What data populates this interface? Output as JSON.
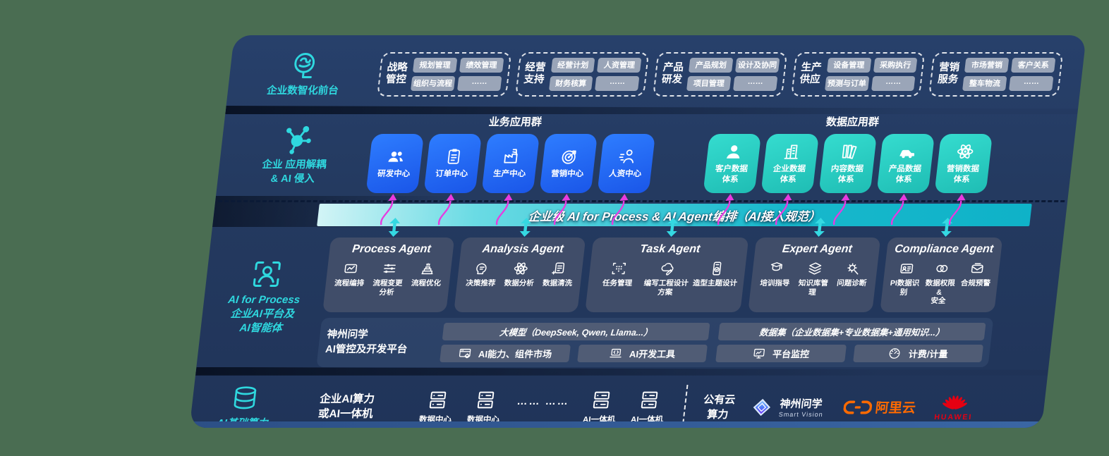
{
  "colors": {
    "background": "#4a6d52",
    "panel_navy": "#243a60",
    "accent_teal": "#2fd8df",
    "business_blue": "#2468f2",
    "data_teal": "#2cd3c9",
    "bar_teal": "#18b8cc",
    "arrow_magenta": "#e83ae0",
    "pill_gray": "#9aa5b8",
    "agent_slate": "#404d69",
    "aliyun_orange": "#ff6a00",
    "huawei_red": "#e60012"
  },
  "front_office": {
    "label": "企业数智化前台",
    "groups": [
      {
        "name": "战略\n管控",
        "items": [
          "规划管理",
          "绩效管理",
          "组织与流程",
          "……"
        ]
      },
      {
        "name": "经营\n支持",
        "items": [
          "经营计划",
          "人资管理",
          "财务核算",
          "……"
        ]
      },
      {
        "name": "产品\n研发",
        "items": [
          "产品规划",
          "设计及协同",
          "项目管理",
          "……"
        ]
      },
      {
        "name": "生产\n供应",
        "items": [
          "设备管理",
          "采购执行",
          "预测与订单",
          "……"
        ]
      },
      {
        "name": "营销\n服务",
        "items": [
          "市场营销",
          "客户关系",
          "整车物流",
          "……"
        ]
      }
    ]
  },
  "decouple": {
    "label": "企业 应用解耦\n& AI 侵入",
    "business": {
      "title": "业务应用群",
      "apps": [
        {
          "label": "研发中心",
          "icon": "team-icon"
        },
        {
          "label": "订单中心",
          "icon": "clipboard-icon"
        },
        {
          "label": "生产中心",
          "icon": "factory-icon"
        },
        {
          "label": "营销中心",
          "icon": "target-icon"
        },
        {
          "label": "人资中心",
          "icon": "hr-icon"
        }
      ]
    },
    "data": {
      "title": "数据应用群",
      "apps": [
        {
          "label": "客户数据\n体系",
          "icon": "person-icon"
        },
        {
          "label": "企业数据\n体系",
          "icon": "building-icon"
        },
        {
          "label": "内容数据\n体系",
          "icon": "books-icon"
        },
        {
          "label": "产品数据\n体系",
          "icon": "car-icon"
        },
        {
          "label": "营销数据\n体系",
          "icon": "atom-icon"
        }
      ]
    }
  },
  "bar": {
    "label": "企业级 AI for Process & AI Agent编排（AI接入规范）"
  },
  "agents_layer": {
    "label": "AI for Process\n企业AI平台及\nAI智能体",
    "agents": [
      {
        "title": "Process Agent",
        "caps": [
          {
            "label": "流程编排",
            "icon": "flow-icon"
          },
          {
            "label": "流程变更分析",
            "icon": "sliders-icon"
          },
          {
            "label": "流程优化",
            "icon": "cake-icon"
          }
        ]
      },
      {
        "title": "Analysis Agent",
        "caps": [
          {
            "label": "决策推荐",
            "icon": "decision-icon"
          },
          {
            "label": "数据分析",
            "icon": "atom-icon"
          },
          {
            "label": "数据清洗",
            "icon": "clean-icon"
          }
        ]
      },
      {
        "title": "Task Agent",
        "caps": [
          {
            "label": "任务管理",
            "icon": "taskgrid-icon"
          },
          {
            "label": "编写工程设计方案",
            "icon": "cloudpen-icon"
          },
          {
            "label": "造型主题设计",
            "icon": "theme-icon"
          }
        ]
      },
      {
        "title": "Expert Agent",
        "caps": [
          {
            "label": "培训指导",
            "icon": "training-icon"
          },
          {
            "label": "知识库管理",
            "icon": "layers-icon"
          },
          {
            "label": "问题诊断",
            "icon": "diagnose-icon"
          }
        ]
      },
      {
        "title": "Compliance Agent",
        "caps": [
          {
            "label": "PI数据识别",
            "icon": "idcard-icon"
          },
          {
            "label": "数据权限 &\n安全",
            "icon": "rings-icon"
          },
          {
            "label": "合规预警",
            "icon": "mailalert-icon"
          }
        ]
      }
    ]
  },
  "platform": {
    "label": "神州问学\nAI管控及开发平台",
    "sections": [
      {
        "header": "大模型（DeepSeek, Qwen, Llama...）",
        "cells": [
          {
            "label": "AI能力、组件市场",
            "icon": "window-gear-icon"
          },
          {
            "label": "AI开发工具",
            "icon": "laptop-code-icon"
          }
        ]
      },
      {
        "header": "数据集（企业数据集+专业数据集+通用知识...）",
        "cells": [
          {
            "label": "平台监控",
            "icon": "monitor-icon"
          },
          {
            "label": "计费/计量",
            "icon": "gauge-icon"
          }
        ]
      }
    ]
  },
  "compute": {
    "label": "AI基础算力",
    "enterprise": "企业AI算力\n或AI一体机",
    "nodes": [
      {
        "label": "数据中心",
        "icon": "server-icon"
      },
      {
        "label": "数据中心",
        "icon": "server-icon"
      },
      {
        "label": "…… ……",
        "icon": ""
      },
      {
        "label": "AI一体机",
        "icon": "server-icon"
      },
      {
        "label": "AI一体机",
        "icon": "server-icon"
      }
    ],
    "public_cloud": "公有云\n算力",
    "vendors": [
      {
        "name": "神州问学",
        "subtitle": "Smart Vision"
      },
      {
        "name": "阿里云",
        "subtitle": ""
      },
      {
        "name": "HUAWEI",
        "subtitle": ""
      }
    ]
  }
}
